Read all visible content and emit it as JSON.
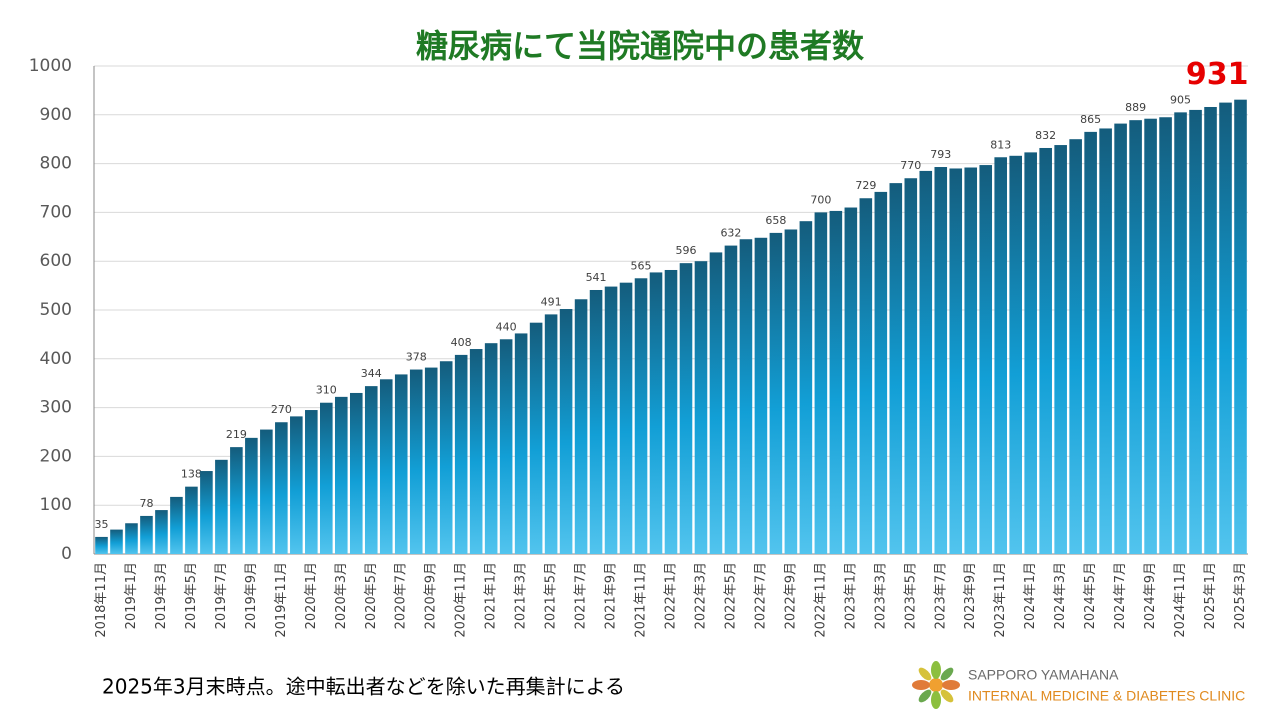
{
  "chart_data": {
    "type": "bar",
    "title": "糖尿病にて当院通院中の患者数",
    "categories": [
      "2018年11月",
      null,
      "2019年1月",
      null,
      "2019年3月",
      null,
      "2019年5月",
      null,
      "2019年7月",
      null,
      "2019年9月",
      null,
      "2019年11月",
      null,
      "2020年1月",
      null,
      "2020年3月",
      null,
      "2020年5月",
      null,
      "2020年7月",
      null,
      "2020年9月",
      null,
      "2020年11月",
      null,
      "2021年1月",
      null,
      "2021年3月",
      null,
      "2021年5月",
      null,
      "2021年7月",
      null,
      "2021年9月",
      null,
      "2021年11月",
      null,
      "2022年1月",
      null,
      "2022年3月",
      null,
      "2022年5月",
      null,
      "2022年7月",
      null,
      "2022年9月",
      null,
      "2022年11月",
      null,
      "2023年1月",
      null,
      "2023年3月",
      null,
      "2023年5月",
      null,
      "2023年7月",
      null,
      "2023年9月",
      null,
      "2023年11月",
      null,
      "2024年1月",
      null,
      "2024年3月",
      null,
      "2024年5月",
      null,
      "2024年7月",
      null,
      "2024年9月",
      null,
      "2024年11月",
      null,
      "2025年1月",
      null,
      "2025年3月"
    ],
    "values": [
      35,
      50,
      63,
      78,
      90,
      117,
      138,
      170,
      193,
      219,
      238,
      255,
      270,
      282,
      295,
      310,
      322,
      330,
      344,
      358,
      368,
      378,
      382,
      395,
      408,
      420,
      432,
      440,
      452,
      474,
      491,
      502,
      522,
      541,
      548,
      556,
      565,
      577,
      582,
      596,
      600,
      618,
      632,
      645,
      648,
      658,
      665,
      682,
      700,
      703,
      710,
      729,
      742,
      760,
      770,
      785,
      793,
      790,
      792,
      797,
      813,
      816,
      823,
      832,
      838,
      850,
      865,
      872,
      882,
      889,
      892,
      895,
      905,
      910,
      916,
      925,
      931
    ],
    "value_labels": [
      "35",
      null,
      null,
      "78",
      null,
      null,
      "138",
      null,
      null,
      "219",
      null,
      null,
      "270",
      null,
      null,
      "310",
      null,
      null,
      "344",
      null,
      null,
      "378",
      null,
      null,
      "408",
      null,
      null,
      "440",
      null,
      null,
      "491",
      null,
      null,
      "541",
      null,
      null,
      "565",
      null,
      null,
      "596",
      null,
      null,
      "632",
      null,
      null,
      "658",
      null,
      null,
      "700",
      null,
      null,
      "729",
      null,
      null,
      "770",
      null,
      "793",
      null,
      null,
      null,
      "813",
      null,
      null,
      "832",
      null,
      null,
      "865",
      null,
      null,
      "889",
      null,
      null,
      "905",
      null,
      null,
      null,
      "931"
    ],
    "highlight_color": "#e60000",
    "ylim": [
      0,
      1000
    ],
    "yticks": [
      0,
      100,
      200,
      300,
      400,
      500,
      600,
      700,
      800,
      900,
      1000
    ],
    "grid": true,
    "footnote": "2025年3月末時点。途中転出者などを除いた再集計による",
    "logo": {
      "line1": "SAPPORO YAMAHANA",
      "line2": "INTERNAL MEDICINE & DIABETES CLINIC"
    }
  }
}
